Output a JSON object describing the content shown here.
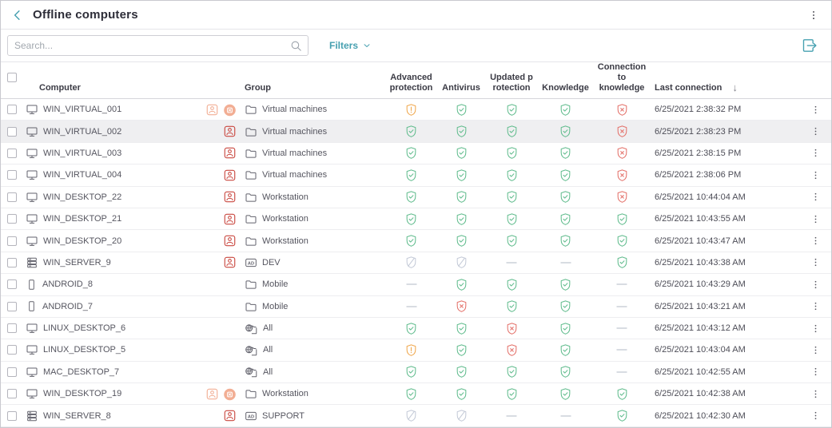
{
  "header": {
    "title": "Offline computers"
  },
  "toolbar": {
    "search_placeholder": "Search...",
    "filters_label": "Filters"
  },
  "icons": {
    "ad_badge_label": "AD",
    "sort_desc": "↓"
  },
  "colors": {
    "accent": "#46a0b0",
    "ok": "#63bd8f",
    "warning": "#f0a950",
    "error": "#e4736c",
    "disabled": "#c5cbd8",
    "badge_red": "#c9473f",
    "badge_light": "#f2ae94",
    "icon_gray": "#62626c",
    "dash": "#c0c6d0"
  },
  "table": {
    "columns": [
      "Computer",
      "Group",
      "Advanced protection",
      "Antivirus",
      "Updated protection",
      "Knowledge",
      "Connection to knowledge",
      "Last connection"
    ],
    "sort_column": "Last connection",
    "sort_direction": "desc",
    "rows": [
      {
        "name": "WIN_VIRTUAL_001",
        "device": "desktop",
        "badges": [
          "person-light",
          "isolation-light"
        ],
        "group": {
          "type": "folder",
          "label": "Virtual machines"
        },
        "statuses": [
          "warning",
          "ok",
          "ok",
          "ok",
          "error"
        ],
        "last_connection": "6/25/2021 2:38:32 PM",
        "highlighted": false
      },
      {
        "name": "WIN_VIRTUAL_002",
        "device": "desktop",
        "badges": [
          "person-red"
        ],
        "group": {
          "type": "folder",
          "label": "Virtual machines"
        },
        "statuses": [
          "ok",
          "ok",
          "ok",
          "ok",
          "error"
        ],
        "last_connection": "6/25/2021 2:38:23 PM",
        "highlighted": true
      },
      {
        "name": "WIN_VIRTUAL_003",
        "device": "desktop",
        "badges": [
          "person-red"
        ],
        "group": {
          "type": "folder",
          "label": "Virtual machines"
        },
        "statuses": [
          "ok",
          "ok",
          "ok",
          "ok",
          "error"
        ],
        "last_connection": "6/25/2021 2:38:15 PM",
        "highlighted": false
      },
      {
        "name": "WIN_VIRTUAL_004",
        "device": "desktop",
        "badges": [
          "person-red"
        ],
        "group": {
          "type": "folder",
          "label": "Virtual machines"
        },
        "statuses": [
          "ok",
          "ok",
          "ok",
          "ok",
          "error"
        ],
        "last_connection": "6/25/2021 2:38:06 PM",
        "highlighted": false
      },
      {
        "name": "WIN_DESKTOP_22",
        "device": "desktop",
        "badges": [
          "person-red"
        ],
        "group": {
          "type": "folder",
          "label": "Workstation"
        },
        "statuses": [
          "ok",
          "ok",
          "ok",
          "ok",
          "error"
        ],
        "last_connection": "6/25/2021 10:44:04 AM",
        "highlighted": false
      },
      {
        "name": "WIN_DESKTOP_21",
        "device": "desktop",
        "badges": [
          "person-red"
        ],
        "group": {
          "type": "folder",
          "label": "Workstation"
        },
        "statuses": [
          "ok",
          "ok",
          "ok",
          "ok",
          "ok"
        ],
        "last_connection": "6/25/2021 10:43:55 AM",
        "highlighted": false
      },
      {
        "name": "WIN_DESKTOP_20",
        "device": "desktop",
        "badges": [
          "person-red"
        ],
        "group": {
          "type": "folder",
          "label": "Workstation"
        },
        "statuses": [
          "ok",
          "ok",
          "ok",
          "ok",
          "ok"
        ],
        "last_connection": "6/25/2021 10:43:47 AM",
        "highlighted": false
      },
      {
        "name": "WIN_SERVER_9",
        "device": "server",
        "badges": [
          "person-red"
        ],
        "group": {
          "type": "ad",
          "label": "DEV"
        },
        "statuses": [
          "disabled",
          "disabled",
          "none",
          "none",
          "ok"
        ],
        "last_connection": "6/25/2021 10:43:38 AM",
        "highlighted": false
      },
      {
        "name": "ANDROID_8",
        "device": "mobile",
        "badges": [],
        "group": {
          "type": "folder",
          "label": "Mobile"
        },
        "statuses": [
          "none",
          "ok",
          "ok",
          "ok",
          "none"
        ],
        "last_connection": "6/25/2021 10:43:29 AM",
        "highlighted": false
      },
      {
        "name": "ANDROID_7",
        "device": "mobile",
        "badges": [],
        "group": {
          "type": "folder",
          "label": "Mobile"
        },
        "statuses": [
          "none",
          "error",
          "ok",
          "ok",
          "none"
        ],
        "last_connection": "6/25/2021 10:43:21 AM",
        "highlighted": false
      },
      {
        "name": "LINUX_DESKTOP_6",
        "device": "desktop",
        "badges": [],
        "group": {
          "type": "all",
          "label": "All"
        },
        "statuses": [
          "ok",
          "ok",
          "error",
          "ok",
          "none"
        ],
        "last_connection": "6/25/2021 10:43:12 AM",
        "highlighted": false
      },
      {
        "name": "LINUX_DESKTOP_5",
        "device": "desktop",
        "badges": [],
        "group": {
          "type": "all",
          "label": "All"
        },
        "statuses": [
          "warning",
          "ok",
          "error",
          "ok",
          "none"
        ],
        "last_connection": "6/25/2021 10:43:04 AM",
        "highlighted": false
      },
      {
        "name": "MAC_DESKTOP_7",
        "device": "desktop",
        "badges": [],
        "group": {
          "type": "all",
          "label": "All"
        },
        "statuses": [
          "ok",
          "ok",
          "ok",
          "ok",
          "none"
        ],
        "last_connection": "6/25/2021 10:42:55 AM",
        "highlighted": false
      },
      {
        "name": "WIN_DESKTOP_19",
        "device": "desktop",
        "badges": [
          "person-light",
          "isolation-light"
        ],
        "group": {
          "type": "folder",
          "label": "Workstation"
        },
        "statuses": [
          "ok",
          "ok",
          "ok",
          "ok",
          "ok"
        ],
        "last_connection": "6/25/2021 10:42:38 AM",
        "highlighted": false
      },
      {
        "name": "WIN_SERVER_8",
        "device": "server",
        "badges": [
          "person-red"
        ],
        "group": {
          "type": "ad",
          "label": "SUPPORT"
        },
        "statuses": [
          "disabled",
          "disabled",
          "none",
          "none",
          "ok"
        ],
        "last_connection": "6/25/2021 10:42:30 AM",
        "highlighted": false
      }
    ]
  }
}
